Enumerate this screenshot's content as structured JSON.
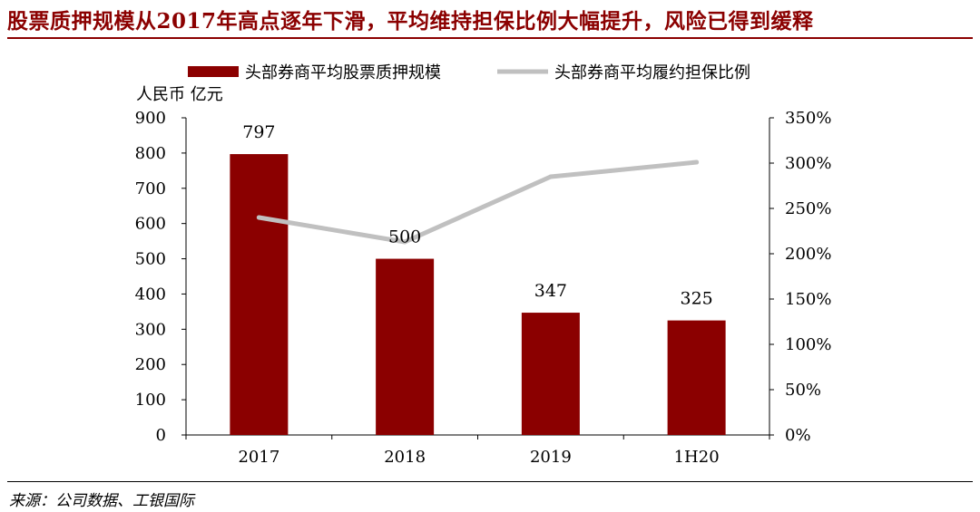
{
  "title": "股票质押规模从2017年高点逐年下滑，平均维持担保比例大幅提升，风险已得到缓释",
  "source": "来源：公司数据、工银国际",
  "colors": {
    "bar": "#8b0000",
    "line": "#c0c0c0",
    "title": "#8b0000"
  },
  "chart_data": {
    "type": "bar",
    "categories": [
      "2017",
      "2018",
      "2019",
      "1H20"
    ],
    "ylabel_left": "人民币 亿元",
    "ylim_left": [
      0,
      900
    ],
    "yticks_left": [
      "0",
      "100",
      "200",
      "300",
      "400",
      "500",
      "600",
      "700",
      "800",
      "900"
    ],
    "ylim_right": [
      0,
      350
    ],
    "yticks_right": [
      "0%",
      "50%",
      "100%",
      "150%",
      "200%",
      "250%",
      "300%",
      "350%"
    ],
    "legend_position": "top",
    "series": [
      {
        "name": "头部券商平均股票质押规模",
        "type": "bar",
        "axis": "left",
        "values": [
          797,
          500,
          347,
          325
        ],
        "labels": [
          "797",
          "500",
          "347",
          "325"
        ]
      },
      {
        "name": "头部券商平均履约担保比例",
        "type": "line",
        "axis": "right",
        "values": [
          240,
          213,
          285,
          301
        ]
      }
    ]
  }
}
